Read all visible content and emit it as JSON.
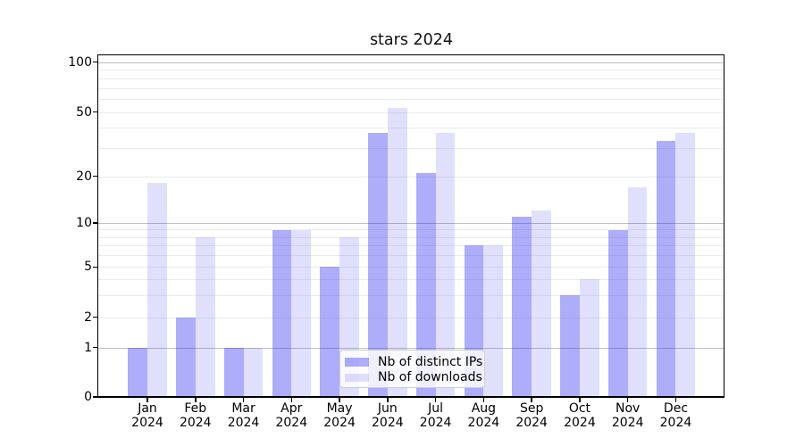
{
  "title": "stars 2024",
  "chart_data": {
    "type": "bar",
    "title": "stars 2024",
    "categories": [
      "Jan",
      "Feb",
      "Mar",
      "Apr",
      "May",
      "Jun",
      "Jul",
      "Aug",
      "Sep",
      "Oct",
      "Nov",
      "Dec"
    ],
    "year_label": "2024",
    "series": [
      {
        "name": "Nb of distinct IPs",
        "color": "rgba(40,40,240,0.38)",
        "values": [
          1,
          2,
          1,
          9,
          5,
          37,
          21,
          7,
          11,
          3,
          9,
          33
        ]
      },
      {
        "name": "Nb of downloads",
        "color": "rgba(40,40,240,0.145)",
        "values": [
          18,
          8,
          1,
          9,
          8,
          53,
          37,
          7,
          12,
          4,
          17,
          37
        ]
      }
    ],
    "xlabel": "",
    "ylabel": "",
    "yscale": "log above 1, linear 0 to 1",
    "ylim": [
      0,
      115
    ],
    "ytick_labels": [
      100,
      50,
      20,
      10,
      5,
      2,
      1,
      0
    ],
    "gridlines_major": [
      1,
      10,
      100
    ],
    "gridlines_minor": [
      2,
      3,
      4,
      5,
      6,
      7,
      8,
      9,
      20,
      30,
      40,
      50,
      60,
      70,
      80,
      90
    ],
    "grid": "on",
    "legend_position": "lower center",
    "legend_entries": [
      "Nb of distinct IPs",
      "Nb of downloads"
    ]
  }
}
